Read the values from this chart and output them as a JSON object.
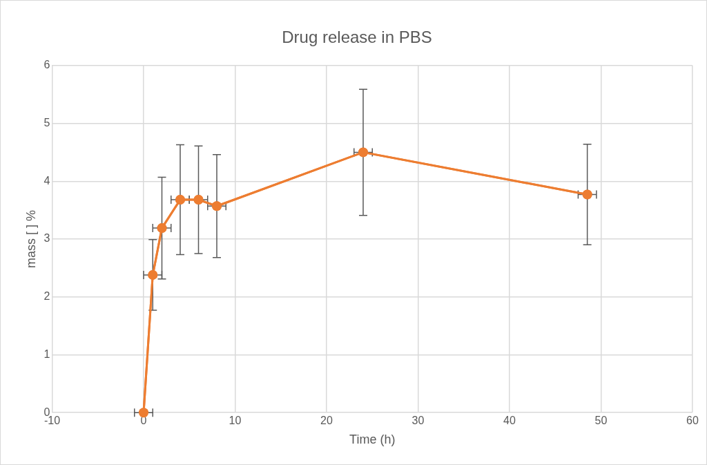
{
  "chart_data": {
    "type": "line",
    "title": "Drug release in PBS",
    "xlabel": "Time (h)",
    "ylabel": "mass [ ] %",
    "x": [
      0,
      1,
      2,
      4,
      6,
      8,
      24,
      48.5
    ],
    "series": [
      {
        "color": "#ed7d31",
        "values": [
          0,
          2.38,
          3.19,
          3.68,
          3.68,
          3.57,
          4.5,
          3.77
        ],
        "errors": [
          null,
          0.61,
          0.88,
          0.95,
          0.93,
          0.89,
          1.09,
          0.87
        ],
        "xerrors": [
          1,
          1,
          1,
          1,
          1,
          1,
          1,
          1
        ]
      }
    ],
    "xlim": [
      -10,
      60
    ],
    "xticks": [
      -10,
      0,
      10,
      20,
      30,
      40,
      50,
      60
    ],
    "ylim": [
      0,
      6
    ],
    "yticks": [
      0,
      1,
      2,
      3,
      4,
      5,
      6
    ],
    "grid": true,
    "legend": false,
    "marker": "circle",
    "line_style": "solid"
  }
}
